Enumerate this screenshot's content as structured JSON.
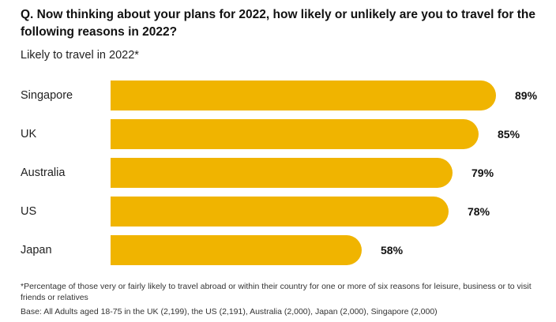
{
  "question": "Q. Now thinking about your plans for 2022, how likely or unlikely are you to travel for the following reasons in 2022?",
  "subtitle": "Likely to travel in 2022*",
  "chart_data": {
    "type": "bar",
    "orientation": "horizontal",
    "categories": [
      "Singapore",
      "UK",
      "Australia",
      "US",
      "Japan"
    ],
    "values": [
      89,
      85,
      79,
      78,
      58
    ],
    "value_labels": [
      "89%",
      "85%",
      "79%",
      "78%",
      "58%"
    ],
    "title": "Likely to travel in 2022*",
    "bar_color": "#f0b400",
    "grid": false
  },
  "footnote": "*Percentage of those very or fairly likely to travel abroad or within their country for one or more of six reasons for leisure, business or to visit friends or relatives",
  "base": "Base: All Adults aged 18-75 in the UK (2,199), the US (2,191), Australia (2,000), Japan (2,000), Singapore (2,000)"
}
